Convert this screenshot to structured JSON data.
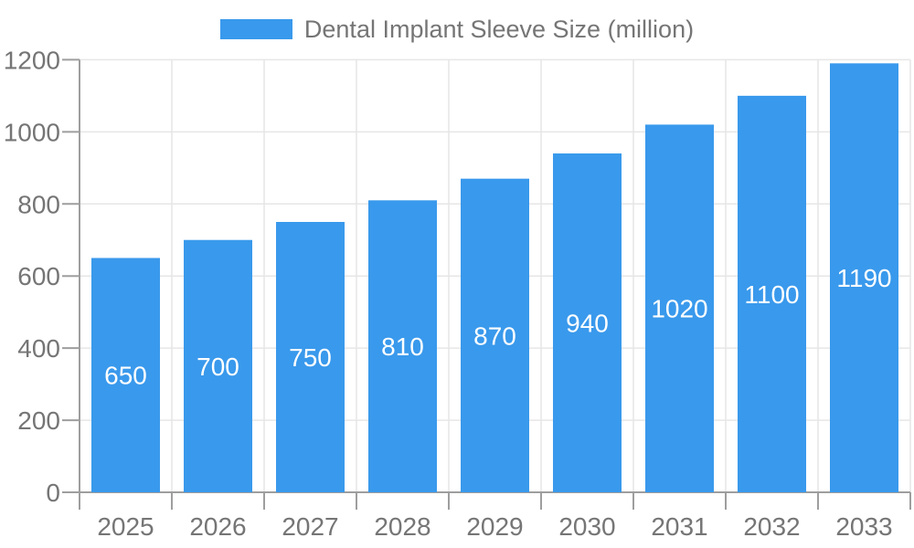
{
  "legend": {
    "label": "Dental Implant Sleeve Size (million)",
    "position": "top-center"
  },
  "colors": {
    "bar": "#3999EC",
    "axis": "#9E9E9E",
    "grid": "#E6E6E6",
    "tick_label": "#757575",
    "bar_label": "#FFFFFF",
    "background": "#FFFFFF"
  },
  "chart_data": {
    "type": "bar",
    "title": "Dental Implant Sleeve Size (million)",
    "categories": [
      "2025",
      "2026",
      "2027",
      "2028",
      "2029",
      "2030",
      "2031",
      "2032",
      "2033"
    ],
    "values": [
      650,
      700,
      750,
      810,
      870,
      940,
      1020,
      1100,
      1190
    ],
    "xlabel": "",
    "ylabel": "",
    "ylim": [
      0,
      1200
    ],
    "yticks": [
      0,
      200,
      400,
      600,
      800,
      1000,
      1200
    ],
    "grid": true,
    "legend_position": "top-center",
    "bar_value_labels_inside": true
  }
}
